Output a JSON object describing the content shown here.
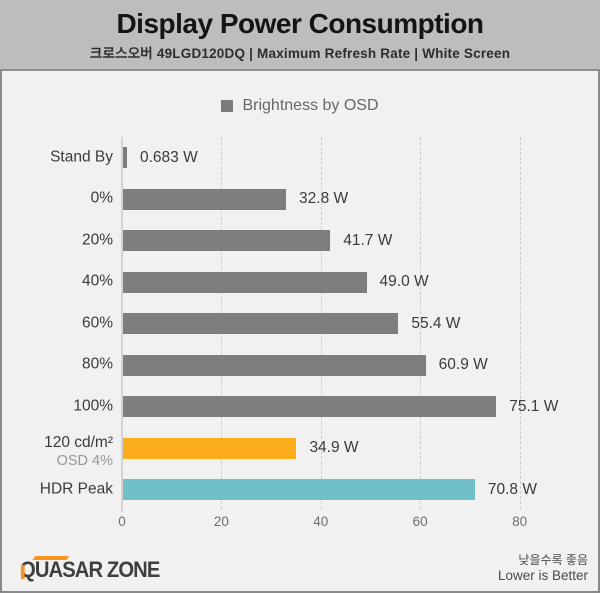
{
  "header": {
    "title": "Display Power Consumption",
    "subtitle": "크로스오버 49LGD120DQ  |  Maximum Refresh Rate  |  White Screen"
  },
  "legend": {
    "label": "Brightness by OSD",
    "swatch_color": "#7B7B7B"
  },
  "chart_data": {
    "type": "bar",
    "orientation": "horizontal",
    "title": "Display Power Consumption",
    "series_name": "Brightness by OSD",
    "categories": [
      "Stand By",
      "0%",
      "20%",
      "40%",
      "60%",
      "80%",
      "100%",
      "120 cd/m²",
      "HDR Peak"
    ],
    "sublabels": [
      "",
      "",
      "",
      "",
      "",
      "",
      "",
      "OSD 4%",
      ""
    ],
    "values": [
      0.683,
      32.8,
      41.7,
      49.0,
      55.4,
      60.9,
      75.1,
      34.9,
      70.8
    ],
    "value_labels": [
      "0.683 W",
      "32.8 W",
      "41.7 W",
      "49.0 W",
      "55.4 W",
      "60.9 W",
      "75.1 W",
      "34.9 W",
      "70.8 W"
    ],
    "bar_colors": [
      "#7E7E7E",
      "#7E7E7E",
      "#7E7E7E",
      "#7E7E7E",
      "#7E7E7E",
      "#7E7E7E",
      "#7E7E7E",
      "#FBAD1B",
      "#71BFC7"
    ],
    "unit": "W",
    "xlabel": "",
    "ylabel": "",
    "xlim": [
      0,
      90
    ],
    "xticks": [
      0,
      20,
      40,
      60,
      80
    ],
    "grid": "dashed-vertical",
    "legend_position": "top-center",
    "annotation": "Lower is Better"
  },
  "footer": {
    "logo_text": "QUASAR ZONE",
    "note_korean": "낮을수록 좋음",
    "note_english": "Lower is Better"
  },
  "colors": {
    "header_bg": "#BDBDBD",
    "body_bg": "#F1F1F1",
    "border": "#898989",
    "bar_gray": "#7E7E7E",
    "bar_orange": "#FBAD1B",
    "bar_teal": "#71BFC7",
    "gridline": "#CBCBCB",
    "axis_line": "#D3D3D3",
    "logo_accent": "#F7941E"
  }
}
